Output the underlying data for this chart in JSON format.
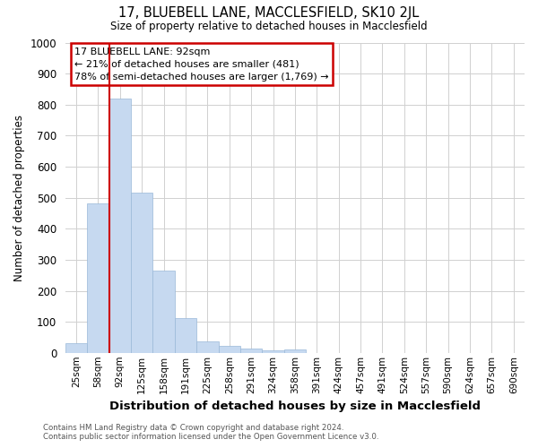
{
  "title1": "17, BLUEBELL LANE, MACCLESFIELD, SK10 2JL",
  "title2": "Size of property relative to detached houses in Macclesfield",
  "xlabel": "Distribution of detached houses by size in Macclesfield",
  "ylabel": "Number of detached properties",
  "footer1": "Contains HM Land Registry data © Crown copyright and database right 2024.",
  "footer2": "Contains public sector information licensed under the Open Government Licence v3.0.",
  "annotation_title": "17 BLUEBELL LANE: 92sqm",
  "annotation_line1": "← 21% of detached houses are smaller (481)",
  "annotation_line2": "78% of semi-detached houses are larger (1,769) →",
  "bar_categories": [
    "25sqm",
    "58sqm",
    "92sqm",
    "125sqm",
    "158sqm",
    "191sqm",
    "225sqm",
    "258sqm",
    "291sqm",
    "324sqm",
    "358sqm",
    "391sqm",
    "424sqm",
    "457sqm",
    "491sqm",
    "524sqm",
    "557sqm",
    "590sqm",
    "624sqm",
    "657sqm",
    "690sqm"
  ],
  "bar_values": [
    30,
    481,
    820,
    515,
    265,
    113,
    38,
    22,
    15,
    8,
    10,
    0,
    0,
    0,
    0,
    0,
    0,
    0,
    0,
    0,
    0
  ],
  "bar_color": "#c6d9f0",
  "bar_edge_color": "#9ab8d8",
  "vline_color": "#cc0000",
  "vline_x_index": 2,
  "ylim": [
    0,
    1000
  ],
  "yticks": [
    0,
    100,
    200,
    300,
    400,
    500,
    600,
    700,
    800,
    900,
    1000
  ],
  "annotation_box_color": "#cc0000",
  "grid_color": "#d0d0d0",
  "background_color": "#ffffff"
}
